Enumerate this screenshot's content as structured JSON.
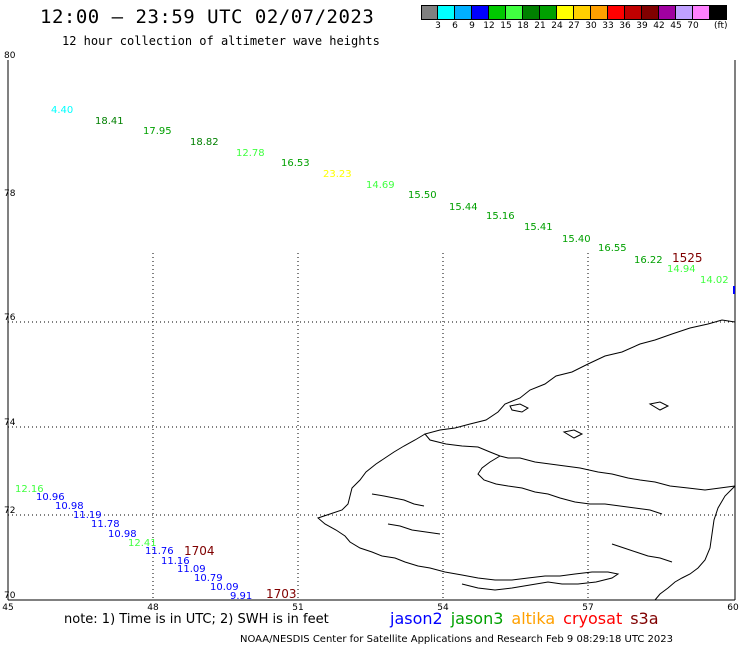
{
  "title": "12:00 – 23:59 UTC 02/07/2023",
  "subtitle": "12 hour collection of altimeter wave heights",
  "legend": {
    "unit": "(ft)",
    "swatches": [
      {
        "color": "#808080",
        "label": ""
      },
      {
        "color": "#00ffff",
        "label": "3"
      },
      {
        "color": "#00b0ff",
        "label": "6"
      },
      {
        "color": "#0000ff",
        "label": "9"
      },
      {
        "color": "#00c800",
        "label": "12"
      },
      {
        "color": "#40ff40",
        "label": "15"
      },
      {
        "color": "#008000",
        "label": "18"
      },
      {
        "color": "#00a000",
        "label": "21"
      },
      {
        "color": "#ffff00",
        "label": "24"
      },
      {
        "color": "#ffd000",
        "label": "27"
      },
      {
        "color": "#ffa000",
        "label": "30"
      },
      {
        "color": "#ff0000",
        "label": "33"
      },
      {
        "color": "#c00000",
        "label": "36"
      },
      {
        "color": "#800000",
        "label": "39"
      },
      {
        "color": "#a000a0",
        "label": "42"
      },
      {
        "color": "#c0a0ff",
        "label": "45"
      },
      {
        "color": "#ff80ff",
        "label": "70"
      },
      {
        "color": "#000000",
        "label": ""
      }
    ]
  },
  "axes": {
    "lat_labels": [
      "80",
      "78",
      "76",
      "74",
      "72",
      "70"
    ],
    "lon_labels": [
      "45",
      "48",
      "51",
      "54",
      "57",
      "60"
    ]
  },
  "measurements": [
    {
      "text": "4.40",
      "color": "#00ffff"
    },
    {
      "text": "18.41",
      "color": "#008000"
    },
    {
      "text": "17.95",
      "color": "#00a000"
    },
    {
      "text": "18.82",
      "color": "#008000"
    },
    {
      "text": "12.78",
      "color": "#40ff40"
    },
    {
      "text": "16.53",
      "color": "#00a000"
    },
    {
      "text": "23.23",
      "color": "#ffff00"
    },
    {
      "text": "14.69",
      "color": "#40ff40"
    },
    {
      "text": "15.50",
      "color": "#00a000"
    },
    {
      "text": "15.44",
      "color": "#00a000"
    },
    {
      "text": "15.16",
      "color": "#00a000"
    },
    {
      "text": "15.41",
      "color": "#00a000"
    },
    {
      "text": "15.40",
      "color": "#00a000"
    },
    {
      "text": "16.55",
      "color": "#00a000"
    },
    {
      "text": "16.22",
      "color": "#00a000"
    },
    {
      "text": "14.94",
      "color": "#40ff40"
    },
    {
      "text": "14.02",
      "color": "#40ff40"
    },
    {
      "text": "12.16",
      "color": "#40ff40"
    },
    {
      "text": "10.96",
      "color": "#0000ff"
    },
    {
      "text": "10.98",
      "color": "#0000ff"
    },
    {
      "text": "11.19",
      "color": "#0000ff"
    },
    {
      "text": "11.78",
      "color": "#0000ff"
    },
    {
      "text": "10.98",
      "color": "#0000ff"
    },
    {
      "text": "12.41",
      "color": "#40ff40"
    },
    {
      "text": "11.76",
      "color": "#0000ff"
    },
    {
      "text": "11.16",
      "color": "#0000ff"
    },
    {
      "text": "11.09",
      "color": "#0000ff"
    },
    {
      "text": "10.79",
      "color": "#0000ff"
    },
    {
      "text": "10.09",
      "color": "#0000ff"
    },
    {
      "text": "9.91",
      "color": "#0000ff"
    }
  ],
  "pass_times": [
    {
      "text": "1525",
      "color": "#800000"
    },
    {
      "text": "1704",
      "color": "#800000"
    },
    {
      "text": "1703",
      "color": "#800000"
    }
  ],
  "note": "note: 1) Time is in UTC; 2) SWH is in feet",
  "satellites": [
    {
      "name": "jason2",
      "color": "#0000ff"
    },
    {
      "name": "jason3",
      "color": "#00a000"
    },
    {
      "name": "altika",
      "color": "#ffa000"
    },
    {
      "name": "cryosat",
      "color": "#ff0000"
    },
    {
      "name": "s3a",
      "color": "#800000"
    }
  ],
  "footer": "NOAA/NESDIS Center for Satellite Applications and Research   Feb  9 08:29:18 UTC 2023"
}
